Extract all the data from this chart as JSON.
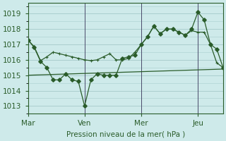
{
  "bg_color": "#ceeaea",
  "grid_color": "#aacece",
  "line_color": "#2a5c2a",
  "marker_color": "#2a5c2a",
  "vline_color": "#4a4a6a",
  "xlabel": "Pression niveau de la mer( hPa )",
  "xlabel_color": "#2a5c2a",
  "tick_color": "#2a5c2a",
  "yticks": [
    1013,
    1014,
    1015,
    1016,
    1017,
    1018,
    1019
  ],
  "ylim": [
    1012.5,
    1019.7
  ],
  "day_labels": [
    "Mar",
    "Ven",
    "Mer",
    "Jeu"
  ],
  "day_positions": [
    0,
    9,
    18,
    27
  ],
  "xlim": [
    0,
    31
  ],
  "series_main_x": [
    0,
    1,
    2,
    3,
    4,
    5,
    6,
    7,
    8,
    9,
    10,
    11,
    12,
    13,
    14,
    15,
    16,
    17,
    18,
    19,
    20,
    21,
    22,
    23,
    24,
    25,
    26,
    27,
    28,
    29,
    30,
    31
  ],
  "series_main_y": [
    1017.3,
    1016.85,
    1015.95,
    1016.2,
    1016.5,
    1016.4,
    1016.3,
    1016.2,
    1016.1,
    1016.0,
    1015.95,
    1016.0,
    1016.2,
    1016.4,
    1016.0,
    1016.0,
    1016.1,
    1016.5,
    1017.0,
    1017.5,
    1018.2,
    1017.7,
    1018.0,
    1018.0,
    1017.8,
    1017.6,
    1017.9,
    1017.8,
    1017.8,
    1017.0,
    1015.8,
    1015.5
  ],
  "series_low_x": [
    0,
    1,
    2,
    3,
    4,
    5,
    6,
    7,
    8,
    9,
    10,
    11,
    12,
    13,
    14,
    15,
    16,
    17,
    18,
    19,
    20,
    21,
    22,
    23,
    24,
    25,
    26,
    27,
    28,
    29,
    30,
    31
  ],
  "series_low_y": [
    1017.3,
    1016.8,
    1015.9,
    1015.5,
    1014.7,
    1014.7,
    1015.1,
    1014.7,
    1014.6,
    1013.0,
    1014.7,
    1015.1,
    1015.0,
    1015.0,
    1015.0,
    1016.1,
    1016.2,
    1016.3,
    1017.0,
    1017.5,
    1018.2,
    1017.7,
    1018.0,
    1018.0,
    1017.8,
    1017.6,
    1018.0,
    1019.1,
    1018.6,
    1017.0,
    1016.7,
    1015.5
  ],
  "series_trend_x": [
    0,
    31
  ],
  "series_trend_y": [
    1015.0,
    1015.4
  ]
}
